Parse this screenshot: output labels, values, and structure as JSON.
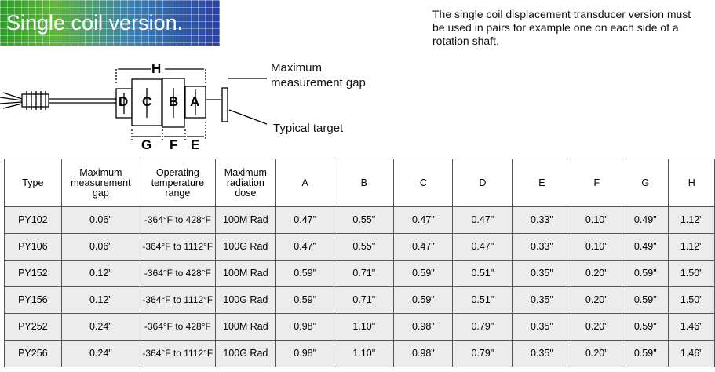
{
  "header": {
    "title": "Single coil version.",
    "description": "The single coil displacement transducer version must be used in pairs for example one on each side of a rotation shaft."
  },
  "diagram": {
    "labels": {
      "h": "H",
      "d": "D",
      "c": "C",
      "b": "B",
      "a": "A",
      "g": "G",
      "f": "F",
      "e": "E"
    },
    "gap": "Maximum measurement gap",
    "target": "Typical target"
  },
  "table": {
    "columns": [
      "Type",
      "Maximum measurement gap",
      "Operating temperature range",
      "Maximum radiation dose",
      "A",
      "B",
      "C",
      "D",
      "E",
      "F",
      "G",
      "H"
    ],
    "rows": [
      [
        "PY102",
        "0.06\"",
        "-364°F to 428°F",
        "100M Rad",
        "0.47\"",
        "0.55\"",
        "0.47\"",
        "0.47\"",
        "0.33\"",
        "0.10\"",
        "0.49\"",
        "1.12\""
      ],
      [
        "PY106",
        "0.06\"",
        "-364°F to 1112°F",
        "100G Rad",
        "0.47\"",
        "0.55\"",
        "0.47\"",
        "0.47\"",
        "0.33\"",
        "0.10\"",
        "0.49\"",
        "1.12\""
      ],
      [
        "PY152",
        "0.12\"",
        "-364°F to 428°F",
        "100M Rad",
        "0.59\"",
        "0.71\"",
        "0.59\"",
        "0.51\"",
        "0.35\"",
        "0.20\"",
        "0.59\"",
        "1.50\""
      ],
      [
        "PY156",
        "0.12\"",
        "-364°F to 1112°F",
        "100G Rad",
        "0.59\"",
        "0.71\"",
        "0.59\"",
        "0.51\"",
        "0.35\"",
        "0.20\"",
        "0.59\"",
        "1.50\""
      ],
      [
        "PY252",
        "0.24\"",
        "-364°F to 428°F",
        "100M Rad",
        "0.98\"",
        "1.10\"",
        "0.98\"",
        "0.79\"",
        "0.35\"",
        "0.20\"",
        "0.59\"",
        "1.46\""
      ],
      [
        "PY256",
        "0.24\"",
        "-364°F to 1112°F",
        "100G Rad",
        "0.98\"",
        "1.10\"",
        "0.98\"",
        "0.79\"",
        "0.35\"",
        "0.20\"",
        "0.59\"",
        "1.46\""
      ]
    ]
  }
}
